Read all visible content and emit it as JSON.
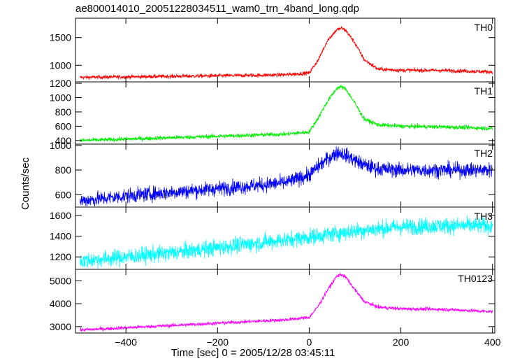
{
  "chart_data": {
    "type": "line",
    "title": "ae800014010_20051228034511_wam0_trn_4band_long.qdp",
    "xlabel": "Time [sec] 0 = 2005/12/28 03:45:11",
    "ylabel": "Counts/sec",
    "xlim": [
      -510,
      405
    ],
    "x_ticks": [
      -400,
      -200,
      0,
      200,
      400
    ],
    "x_tick_labels": [
      "−400",
      "−200",
      "0",
      "200",
      "400"
    ],
    "panels": [
      {
        "name": "TH0",
        "color": "#ff0000",
        "ylim": [
          700,
          1850
        ],
        "y_ticks": [
          1000,
          1500
        ],
        "noise": 18,
        "x": [
          -500,
          -400,
          -300,
          -200,
          -100,
          -50,
          0,
          20,
          40,
          60,
          70,
          80,
          100,
          120,
          150,
          200,
          300,
          400
        ],
        "y": [
          780,
          790,
          800,
          810,
          820,
          830,
          860,
          1100,
          1450,
          1640,
          1670,
          1630,
          1400,
          1100,
          930,
          910,
          905,
          880
        ]
      },
      {
        "name": "TH1",
        "color": "#00ee00",
        "ylim": [
          350,
          1220
        ],
        "y_ticks": [
          400,
          600,
          800,
          1000,
          1200
        ],
        "noise": 15,
        "x": [
          -500,
          -400,
          -300,
          -200,
          -100,
          -50,
          0,
          20,
          40,
          60,
          70,
          80,
          100,
          120,
          150,
          200,
          300,
          400
        ],
        "y": [
          400,
          420,
          440,
          460,
          480,
          490,
          520,
          720,
          950,
          1130,
          1150,
          1120,
          920,
          700,
          620,
          600,
          590,
          570
        ]
      },
      {
        "name": "TH2",
        "color": "#0000ff",
        "ylim": [
          500,
          1010
        ],
        "y_ticks": [
          600,
          800,
          1000
        ],
        "noise": 30,
        "x": [
          -500,
          -400,
          -300,
          -200,
          -100,
          -50,
          0,
          20,
          40,
          60,
          70,
          80,
          100,
          120,
          150,
          200,
          300,
          400
        ],
        "y": [
          550,
          590,
          620,
          650,
          680,
          700,
          760,
          830,
          890,
          940,
          940,
          920,
          880,
          840,
          810,
          800,
          800,
          800
        ]
      },
      {
        "name": "TH3",
        "color": "#00ffff",
        "ylim": [
          1080,
          1680
        ],
        "y_ticks": [
          1200,
          1400,
          1600
        ],
        "noise": 40,
        "x": [
          -500,
          -400,
          -300,
          -200,
          -100,
          0,
          100,
          200,
          300,
          400
        ],
        "y": [
          1160,
          1200,
          1240,
          1290,
          1340,
          1390,
          1450,
          1490,
          1500,
          1500
        ]
      },
      {
        "name": "TH0123",
        "color": "#ff00ff",
        "ylim": [
          2720,
          5500
        ],
        "y_ticks": [
          3000,
          4000,
          5000
        ],
        "noise": 40,
        "x": [
          -500,
          -400,
          -300,
          -200,
          -100,
          -50,
          0,
          20,
          40,
          60,
          70,
          80,
          100,
          120,
          150,
          200,
          300,
          400
        ],
        "y": [
          2850,
          2950,
          3050,
          3150,
          3250,
          3300,
          3400,
          3900,
          4600,
          5200,
          5280,
          5150,
          4600,
          4100,
          3850,
          3780,
          3750,
          3650
        ]
      }
    ]
  }
}
